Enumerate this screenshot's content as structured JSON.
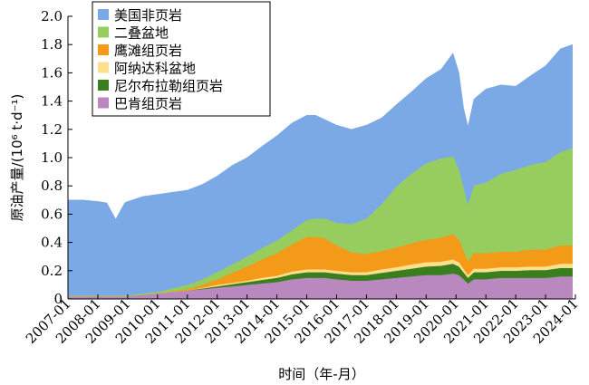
{
  "chart_data": {
    "type": "area",
    "stacked": true,
    "xlabel": "时间（年-月）",
    "ylabel": "原油产量/(10⁶ t·d⁻¹)",
    "ylim": [
      0,
      2.0
    ],
    "yticks": [
      "0",
      "0.2",
      "0.4",
      "0.6",
      "0.8",
      "1.0",
      "1.2",
      "1.4",
      "1.6",
      "1.8",
      "2.0"
    ],
    "xticks": [
      "2007-01",
      "2008-01",
      "2009-01",
      "2010-01",
      "2011-01",
      "2012-01",
      "2013-01",
      "2014-01",
      "2015-01",
      "2016-01",
      "2017-01",
      "2018-01",
      "2019-01",
      "2020-01",
      "2021-01",
      "2022-01",
      "2023-01",
      "2024-01"
    ],
    "xlim": [
      2007.0,
      2024.0
    ],
    "legend_position": "top-left",
    "grid": false,
    "x": [
      2007.0,
      2007.5,
      2008.0,
      2008.3,
      2008.6,
      2008.9,
      2009.0,
      2009.5,
      2010.0,
      2010.5,
      2011.0,
      2011.5,
      2012.0,
      2012.5,
      2013.0,
      2013.5,
      2014.0,
      2014.5,
      2015.0,
      2015.3,
      2015.6,
      2016.0,
      2016.5,
      2017.0,
      2017.5,
      2018.0,
      2018.5,
      2019.0,
      2019.5,
      2019.9,
      2020.1,
      2020.25,
      2020.4,
      2020.6,
      2021.0,
      2021.5,
      2022.0,
      2022.5,
      2023.0,
      2023.5,
      2023.9
    ],
    "series": [
      {
        "name": "巴肯组页岩",
        "color": "#b888bf",
        "values": [
          0.02,
          0.02,
          0.02,
          0.02,
          0.02,
          0.02,
          0.02,
          0.03,
          0.04,
          0.05,
          0.06,
          0.07,
          0.08,
          0.09,
          0.1,
          0.11,
          0.12,
          0.14,
          0.15,
          0.15,
          0.15,
          0.14,
          0.13,
          0.13,
          0.14,
          0.15,
          0.16,
          0.17,
          0.17,
          0.18,
          0.17,
          0.14,
          0.11,
          0.14,
          0.14,
          0.15,
          0.15,
          0.15,
          0.15,
          0.16,
          0.16
        ]
      },
      {
        "name": "尼尔布拉勒组页岩",
        "color": "#3a7f1e",
        "values": [
          0,
          0,
          0,
          0,
          0,
          0,
          0,
          0,
          0,
          0,
          0,
          0.005,
          0.01,
          0.015,
          0.02,
          0.025,
          0.03,
          0.035,
          0.04,
          0.04,
          0.04,
          0.04,
          0.04,
          0.04,
          0.045,
          0.05,
          0.055,
          0.06,
          0.065,
          0.07,
          0.06,
          0.05,
          0.04,
          0.05,
          0.05,
          0.05,
          0.05,
          0.055,
          0.055,
          0.06,
          0.06
        ]
      },
      {
        "name": "阿纳达科盆地",
        "color": "#fde08e",
        "values": [
          0,
          0,
          0,
          0,
          0,
          0,
          0,
          0,
          0,
          0,
          0,
          0.005,
          0.01,
          0.01,
          0.01,
          0.015,
          0.015,
          0.02,
          0.02,
          0.02,
          0.02,
          0.02,
          0.02,
          0.02,
          0.025,
          0.025,
          0.03,
          0.03,
          0.03,
          0.03,
          0.03,
          0.025,
          0.02,
          0.025,
          0.025,
          0.025,
          0.025,
          0.025,
          0.025,
          0.03,
          0.03
        ]
      },
      {
        "name": "鹰滩组页岩",
        "color": "#f39b18",
        "values": [
          0,
          0,
          0,
          0,
          0,
          0,
          0,
          0,
          0,
          0.005,
          0.01,
          0.02,
          0.04,
          0.07,
          0.1,
          0.13,
          0.16,
          0.19,
          0.23,
          0.23,
          0.22,
          0.18,
          0.14,
          0.13,
          0.13,
          0.14,
          0.15,
          0.16,
          0.17,
          0.18,
          0.16,
          0.13,
          0.1,
          0.11,
          0.11,
          0.11,
          0.11,
          0.12,
          0.12,
          0.13,
          0.13
        ]
      },
      {
        "name": "二叠盆地",
        "color": "#96cd5e",
        "values": [
          0.005,
          0.005,
          0.005,
          0.005,
          0.005,
          0.005,
          0.005,
          0.01,
          0.01,
          0.02,
          0.03,
          0.04,
          0.05,
          0.06,
          0.07,
          0.08,
          0.09,
          0.1,
          0.12,
          0.13,
          0.14,
          0.16,
          0.2,
          0.25,
          0.33,
          0.43,
          0.49,
          0.54,
          0.56,
          0.55,
          0.5,
          0.45,
          0.4,
          0.48,
          0.5,
          0.55,
          0.58,
          0.6,
          0.62,
          0.66,
          0.69
        ]
      },
      {
        "name": "美国非页岩",
        "color": "#7ba9e6",
        "values": [
          0.675,
          0.675,
          0.665,
          0.655,
          0.54,
          0.655,
          0.665,
          0.685,
          0.69,
          0.68,
          0.67,
          0.67,
          0.68,
          0.7,
          0.7,
          0.72,
          0.74,
          0.76,
          0.74,
          0.73,
          0.7,
          0.69,
          0.67,
          0.66,
          0.61,
          0.58,
          0.58,
          0.6,
          0.63,
          0.73,
          0.68,
          0.56,
          0.55,
          0.61,
          0.66,
          0.63,
          0.59,
          0.63,
          0.68,
          0.73,
          0.73
        ]
      }
    ]
  }
}
